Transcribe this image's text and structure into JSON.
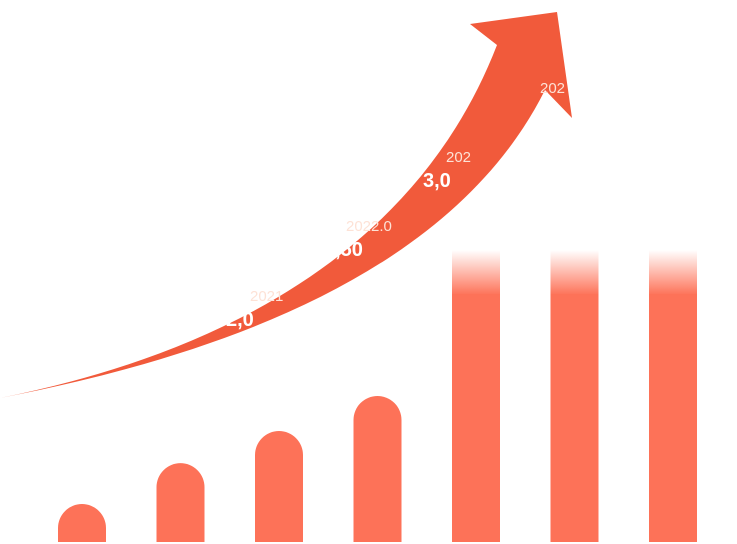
{
  "colors": {
    "bar": "#fd7258",
    "arrow": "#f15a3b",
    "label_year": "#fde2d6",
    "label_value": "#ffffff",
    "background": "#ffffff"
  },
  "chart_data": {
    "type": "bar",
    "title": "",
    "xlabel": "",
    "ylabel": "",
    "grid": false,
    "legend": "none",
    "ylim": [
      0,
      1
    ],
    "bar_values": [
      0.13,
      0.27,
      0.38,
      0.5,
      1.0,
      1.0,
      1.0
    ],
    "faded_top_bars": [
      4,
      5,
      6
    ],
    "labels": [
      {
        "year": "2021",
        "value": "2,0"
      },
      {
        "year": "2022.0",
        "value": "2,50"
      },
      {
        "year": "202",
        "value": "3,0"
      },
      {
        "year": "202",
        "value": ""
      }
    ],
    "trend_arrow": "up"
  }
}
